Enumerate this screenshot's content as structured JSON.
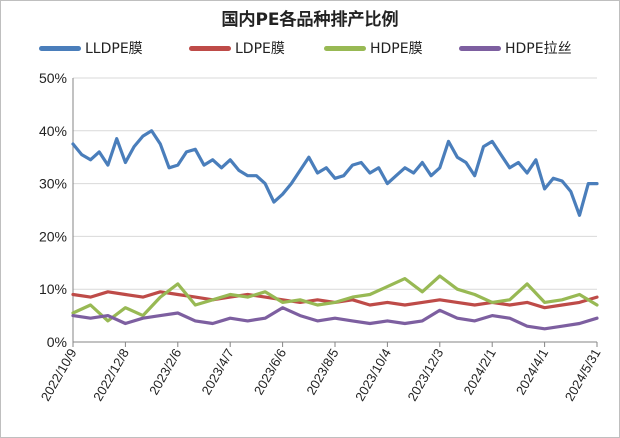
{
  "chart_data": {
    "type": "line",
    "title": "国内PE各品种排产比例",
    "xlabel": "",
    "ylabel": "",
    "ylim": [
      0,
      50
    ],
    "y_ticks": [
      "0%",
      "10%",
      "20%",
      "30%",
      "40%",
      "50%"
    ],
    "x_start": "2022-10-09",
    "x_end": "2024-05-31",
    "x_tick_labels": [
      "2022/10/9",
      "2022/12/8",
      "2023/2/6",
      "2023/4/7",
      "2023/6/6",
      "2023/8/5",
      "2023/10/4",
      "2023/12/3",
      "2024/2/1",
      "2024/4/1",
      "2024/5/31"
    ],
    "grid": "horizontal",
    "legend": "top",
    "series": [
      {
        "name": "LLDPE膜",
        "color": "#4a7ebb",
        "points": [
          [
            "2022-10-09",
            37.5
          ],
          [
            "2022-10-19",
            35.5
          ],
          [
            "2022-10-29",
            34.5
          ],
          [
            "2022-11-08",
            36.0
          ],
          [
            "2022-11-18",
            33.5
          ],
          [
            "2022-11-28",
            38.5
          ],
          [
            "2022-12-08",
            34.0
          ],
          [
            "2022-12-18",
            37.0
          ],
          [
            "2022-12-28",
            39.0
          ],
          [
            "2023-01-07",
            40.0
          ],
          [
            "2023-01-17",
            37.5
          ],
          [
            "2023-01-27",
            33.0
          ],
          [
            "2023-02-06",
            33.5
          ],
          [
            "2023-02-16",
            36.0
          ],
          [
            "2023-02-26",
            36.5
          ],
          [
            "2023-03-08",
            33.5
          ],
          [
            "2023-03-18",
            34.5
          ],
          [
            "2023-03-28",
            33.0
          ],
          [
            "2023-04-07",
            34.5
          ],
          [
            "2023-04-17",
            32.5
          ],
          [
            "2023-04-27",
            31.5
          ],
          [
            "2023-05-07",
            31.5
          ],
          [
            "2023-05-17",
            30.0
          ],
          [
            "2023-05-27",
            26.5
          ],
          [
            "2023-06-06",
            28.0
          ],
          [
            "2023-06-16",
            30.0
          ],
          [
            "2023-06-26",
            32.5
          ],
          [
            "2023-07-06",
            35.0
          ],
          [
            "2023-07-16",
            32.0
          ],
          [
            "2023-07-26",
            33.0
          ],
          [
            "2023-08-05",
            31.0
          ],
          [
            "2023-08-15",
            31.5
          ],
          [
            "2023-08-25",
            33.5
          ],
          [
            "2023-09-04",
            34.0
          ],
          [
            "2023-09-14",
            32.0
          ],
          [
            "2023-09-24",
            33.0
          ],
          [
            "2023-10-04",
            30.0
          ],
          [
            "2023-10-14",
            31.5
          ],
          [
            "2023-10-24",
            33.0
          ],
          [
            "2023-11-03",
            32.0
          ],
          [
            "2023-11-13",
            34.0
          ],
          [
            "2023-11-23",
            31.5
          ],
          [
            "2023-12-03",
            33.0
          ],
          [
            "2023-12-13",
            38.0
          ],
          [
            "2023-12-23",
            35.0
          ],
          [
            "2024-01-02",
            34.0
          ],
          [
            "2024-01-12",
            31.5
          ],
          [
            "2024-01-22",
            37.0
          ],
          [
            "2024-02-01",
            38.0
          ],
          [
            "2024-02-11",
            35.5
          ],
          [
            "2024-02-21",
            33.0
          ],
          [
            "2024-03-02",
            34.0
          ],
          [
            "2024-03-12",
            32.0
          ],
          [
            "2024-03-22",
            34.5
          ],
          [
            "2024-04-01",
            29.0
          ],
          [
            "2024-04-11",
            31.0
          ],
          [
            "2024-04-21",
            30.5
          ],
          [
            "2024-05-01",
            28.5
          ],
          [
            "2024-05-11",
            24.0
          ],
          [
            "2024-05-21",
            30.0
          ],
          [
            "2024-05-31",
            30.0
          ]
        ]
      },
      {
        "name": "LDPE膜",
        "color": "#be4b48",
        "points": [
          [
            "2022-10-09",
            9.0
          ],
          [
            "2022-10-29",
            8.5
          ],
          [
            "2022-11-18",
            9.5
          ],
          [
            "2022-12-08",
            9.0
          ],
          [
            "2022-12-28",
            8.5
          ],
          [
            "2023-01-17",
            9.5
          ],
          [
            "2023-02-06",
            9.0
          ],
          [
            "2023-02-26",
            8.5
          ],
          [
            "2023-03-18",
            8.0
          ],
          [
            "2023-04-07",
            8.5
          ],
          [
            "2023-04-27",
            9.0
          ],
          [
            "2023-05-17",
            8.5
          ],
          [
            "2023-06-06",
            8.0
          ],
          [
            "2023-06-26",
            7.5
          ],
          [
            "2023-07-16",
            8.0
          ],
          [
            "2023-08-05",
            7.5
          ],
          [
            "2023-08-25",
            8.0
          ],
          [
            "2023-09-14",
            7.0
          ],
          [
            "2023-10-04",
            7.5
          ],
          [
            "2023-10-24",
            7.0
          ],
          [
            "2023-11-13",
            7.5
          ],
          [
            "2023-12-03",
            8.0
          ],
          [
            "2023-12-23",
            7.5
          ],
          [
            "2024-01-12",
            7.0
          ],
          [
            "2024-02-01",
            7.5
          ],
          [
            "2024-02-21",
            7.0
          ],
          [
            "2024-03-12",
            7.5
          ],
          [
            "2024-04-01",
            6.5
          ],
          [
            "2024-04-21",
            7.0
          ],
          [
            "2024-05-11",
            7.5
          ],
          [
            "2024-05-31",
            8.5
          ]
        ]
      },
      {
        "name": "HDPE膜",
        "color": "#98b954",
        "points": [
          [
            "2022-10-09",
            5.5
          ],
          [
            "2022-10-29",
            7.0
          ],
          [
            "2022-11-18",
            4.0
          ],
          [
            "2022-12-08",
            6.5
          ],
          [
            "2022-12-28",
            5.0
          ],
          [
            "2023-01-17",
            8.5
          ],
          [
            "2023-02-06",
            11.0
          ],
          [
            "2023-02-26",
            7.0
          ],
          [
            "2023-03-18",
            8.0
          ],
          [
            "2023-04-07",
            9.0
          ],
          [
            "2023-04-27",
            8.5
          ],
          [
            "2023-05-17",
            9.5
          ],
          [
            "2023-06-06",
            7.5
          ],
          [
            "2023-06-26",
            8.0
          ],
          [
            "2023-07-16",
            7.0
          ],
          [
            "2023-08-05",
            7.5
          ],
          [
            "2023-08-25",
            8.5
          ],
          [
            "2023-09-14",
            9.0
          ],
          [
            "2023-10-04",
            10.5
          ],
          [
            "2023-10-24",
            12.0
          ],
          [
            "2023-11-13",
            9.5
          ],
          [
            "2023-12-03",
            12.5
          ],
          [
            "2023-12-23",
            10.0
          ],
          [
            "2024-01-12",
            9.0
          ],
          [
            "2024-02-01",
            7.5
          ],
          [
            "2024-02-21",
            8.0
          ],
          [
            "2024-03-12",
            11.0
          ],
          [
            "2024-04-01",
            7.5
          ],
          [
            "2024-04-21",
            8.0
          ],
          [
            "2024-05-11",
            9.0
          ],
          [
            "2024-05-31",
            7.0
          ]
        ]
      },
      {
        "name": "HDPE拉丝",
        "color": "#7d5fa0",
        "points": [
          [
            "2022-10-09",
            5.0
          ],
          [
            "2022-10-29",
            4.5
          ],
          [
            "2022-11-18",
            5.0
          ],
          [
            "2022-12-08",
            3.5
          ],
          [
            "2022-12-28",
            4.5
          ],
          [
            "2023-01-17",
            5.0
          ],
          [
            "2023-02-06",
            5.5
          ],
          [
            "2023-02-26",
            4.0
          ],
          [
            "2023-03-18",
            3.5
          ],
          [
            "2023-04-07",
            4.5
          ],
          [
            "2023-04-27",
            4.0
          ],
          [
            "2023-05-17",
            4.5
          ],
          [
            "2023-06-06",
            6.5
          ],
          [
            "2023-06-26",
            5.0
          ],
          [
            "2023-07-16",
            4.0
          ],
          [
            "2023-08-05",
            4.5
          ],
          [
            "2023-08-25",
            4.0
          ],
          [
            "2023-09-14",
            3.5
          ],
          [
            "2023-10-04",
            4.0
          ],
          [
            "2023-10-24",
            3.5
          ],
          [
            "2023-11-13",
            4.0
          ],
          [
            "2023-12-03",
            6.0
          ],
          [
            "2023-12-23",
            4.5
          ],
          [
            "2024-01-12",
            4.0
          ],
          [
            "2024-02-01",
            5.0
          ],
          [
            "2024-02-21",
            4.5
          ],
          [
            "2024-03-12",
            3.0
          ],
          [
            "2024-04-01",
            2.5
          ],
          [
            "2024-04-21",
            3.0
          ],
          [
            "2024-05-11",
            3.5
          ],
          [
            "2024-05-31",
            4.5
          ]
        ]
      }
    ]
  }
}
